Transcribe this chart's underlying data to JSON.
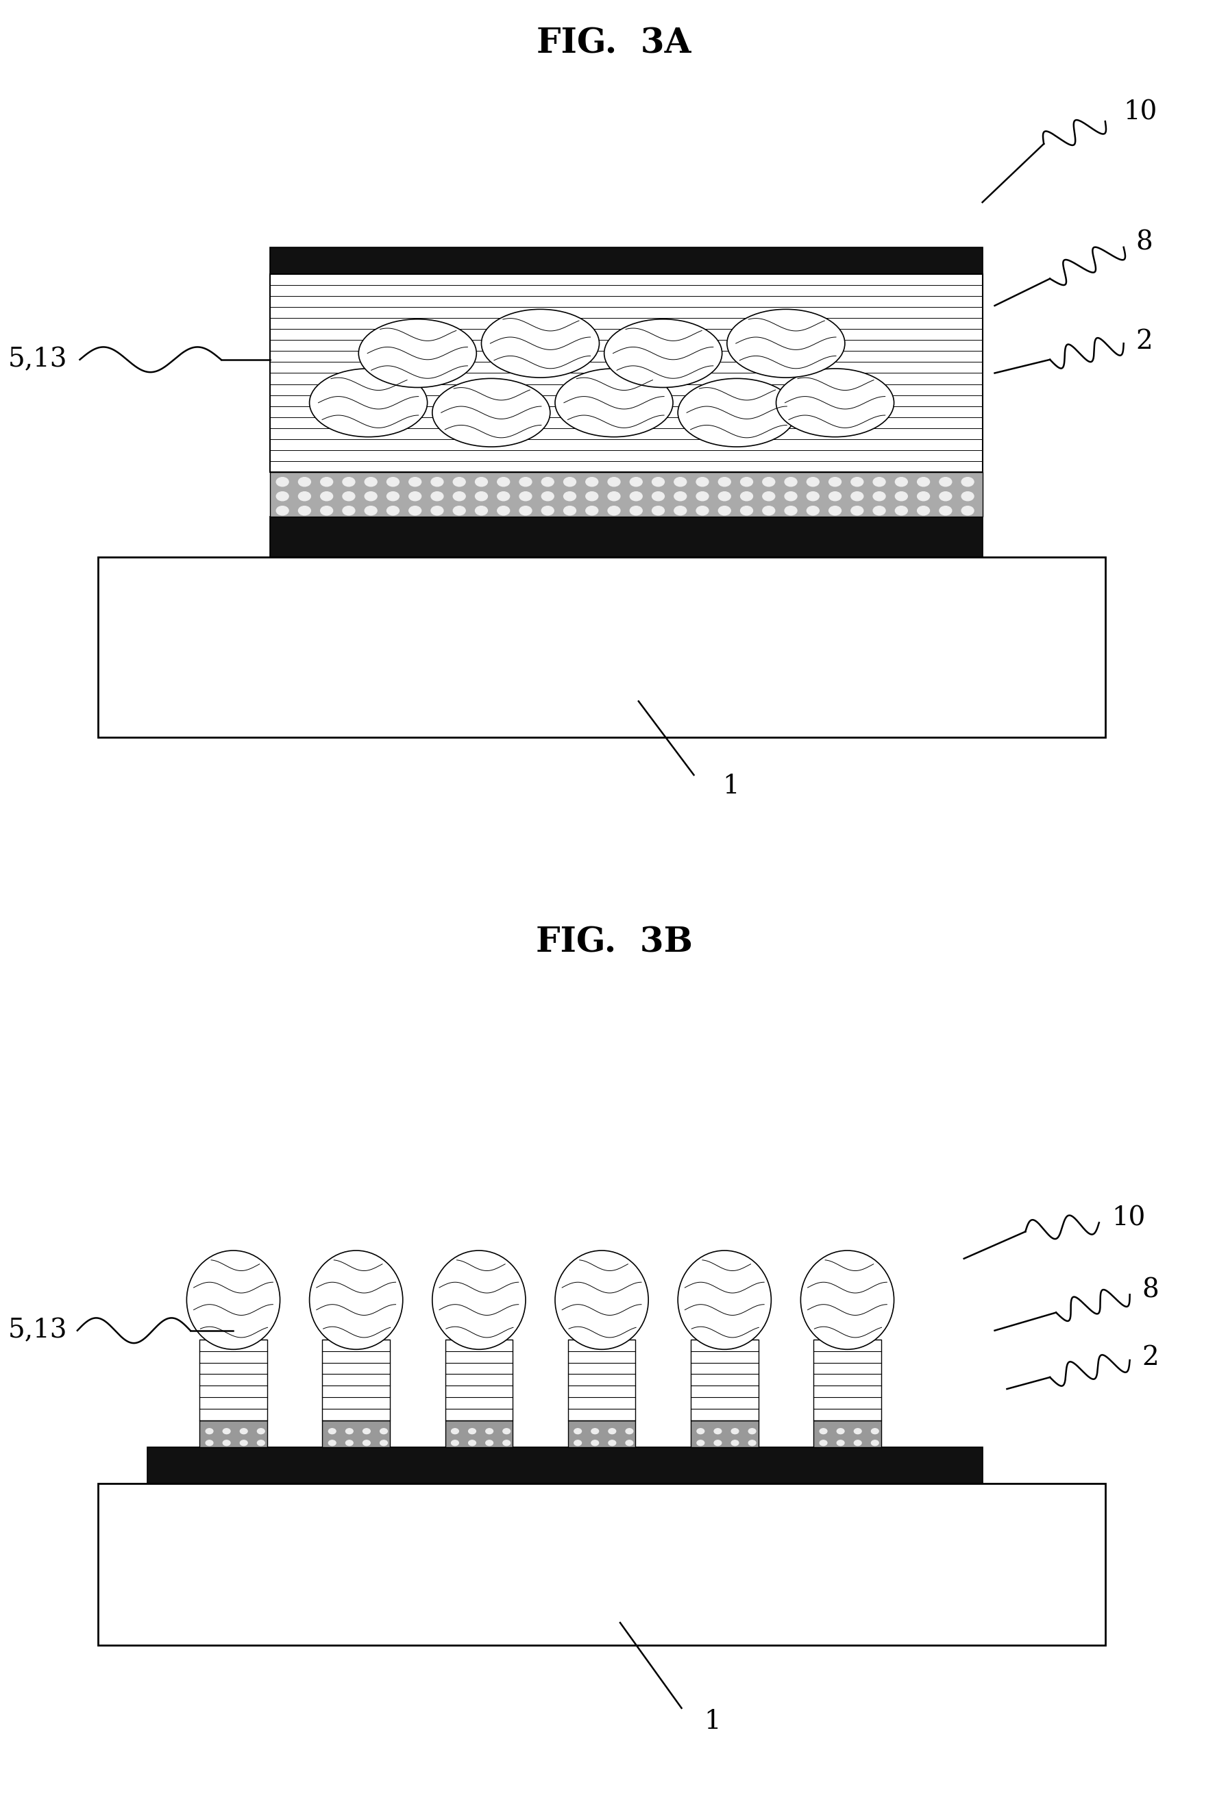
{
  "fig_title_a": "FIG.  3A",
  "fig_title_b": "FIG.  3B",
  "bg_color": "#ffffff",
  "title_fontsize": 36,
  "label_fontsize": 28
}
